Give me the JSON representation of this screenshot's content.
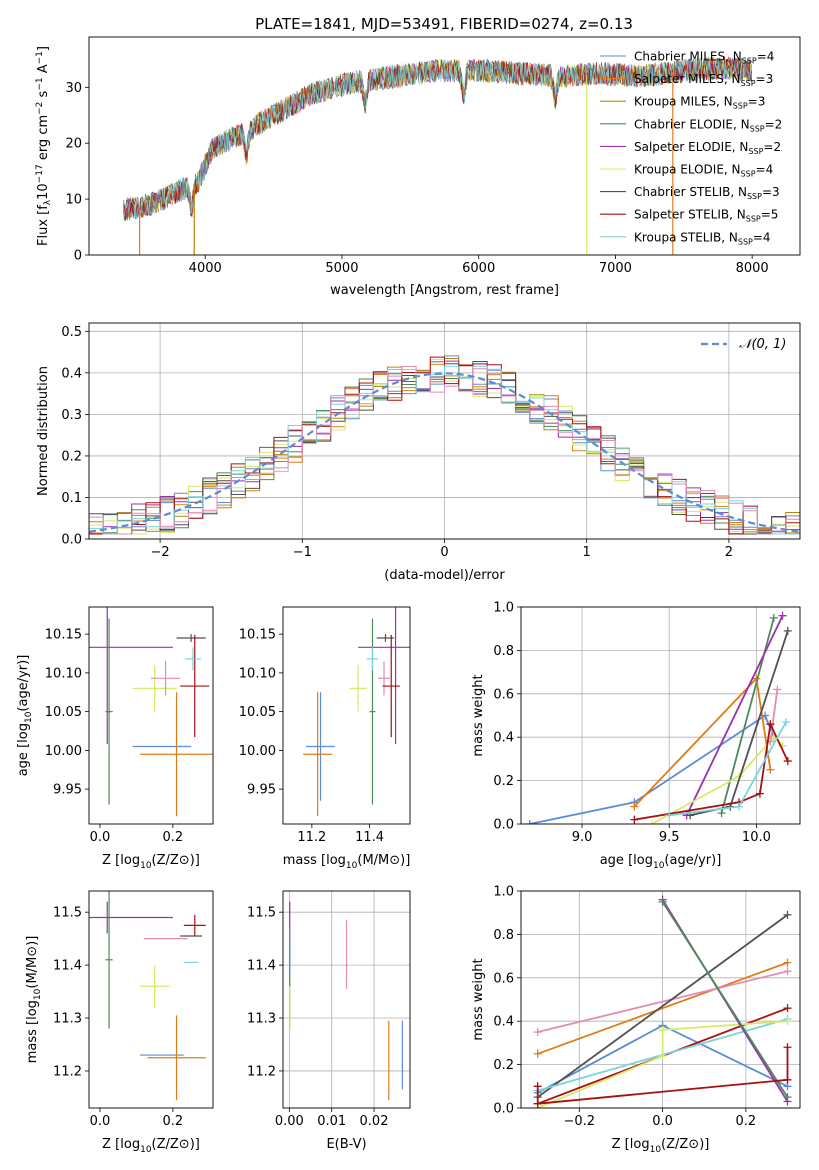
{
  "figure_title": "PLATE=1841, MJD=53491, FIBERID=0274, z=0.13",
  "colors": {
    "chabrier_miles": "#5b8bd6",
    "salpeter_miles": "#e07b1a",
    "kroupa_miles": "#b8860b",
    "chabrier_elodie": "#4d8a57",
    "salpeter_elodie": "#9b30b0",
    "kroupa_elodie": "#d8e96a",
    "chabrier_stelib": "#505050",
    "salpeter_stelib": "#a81010",
    "kroupa_stelib": "#7ad4dc",
    "pink": "#e48bb5",
    "grid": "#b0b0b0"
  },
  "chart_data": [
    {
      "type": "line",
      "title": "PLATE=1841, MJD=53491, FIBERID=0274, z=0.13",
      "xlabel": "wavelength [Angstrom, rest frame]",
      "ylabel": "Flux [f_λ 10^-17 erg cm^-2 s^-1 A^-1]",
      "xlim": [
        3150,
        8350
      ],
      "ylim": [
        0,
        39
      ],
      "xticks": [
        "4000",
        "5000",
        "6000",
        "7000",
        "8000"
      ],
      "yticks": [
        "0",
        "10",
        "20",
        "30"
      ],
      "grid": false,
      "legend": "top-right",
      "legend_entries": [
        {
          "label": "Chabrier MILES, N",
          "sub": "SSP",
          "tail": "=4"
        },
        {
          "label": "Salpeter MILES, N",
          "sub": "SSP",
          "tail": "=3"
        },
        {
          "label": "Kroupa MILES, N",
          "sub": "SSP",
          "tail": "=3"
        },
        {
          "label": "Chabrier ELODIE, N",
          "sub": "SSP",
          "tail": "=2"
        },
        {
          "label": "Salpeter ELODIE, N",
          "sub": "SSP",
          "tail": "=2"
        },
        {
          "label": "Kroupa ELODIE, N",
          "sub": "SSP",
          "tail": "=4"
        },
        {
          "label": "Chabrier STELIB, N",
          "sub": "SSP",
          "tail": "=3"
        },
        {
          "label": "Salpeter STELIB, N",
          "sub": "SSP",
          "tail": "=5"
        },
        {
          "label": "Kroupa STELIB, N",
          "sub": "SSP",
          "tail": "=4"
        }
      ],
      "continuum": {
        "x": [
          3400,
          3600,
          3850,
          3950,
          4050,
          4200,
          4300,
          4500,
          4800,
          5100,
          5400,
          5700,
          6000,
          6300,
          6600,
          6900,
          7200,
          7500,
          7800,
          8000
        ],
        "y": [
          8,
          9,
          12,
          13,
          19,
          21,
          22,
          25,
          29,
          31,
          32,
          33,
          33,
          32.5,
          32,
          32.5,
          32,
          33,
          33.5,
          33
        ]
      },
      "features": {
        "drop_x": [
          3520,
          3920,
          6790,
          7420
        ],
        "absorption_x": [
          3900,
          4300,
          5170,
          5890,
          6560
        ]
      }
    },
    {
      "type": "histogram",
      "xlabel": "(data-model)/error",
      "ylabel": "Normed distribution",
      "xlim": [
        -2.5,
        2.5
      ],
      "ylim": [
        0,
        0.52
      ],
      "xticks": [
        "−2",
        "−1",
        "0",
        "1",
        "2"
      ],
      "yticks": [
        "0.0",
        "0.1",
        "0.2",
        "0.3",
        "0.4",
        "0.5"
      ],
      "grid": true,
      "legend": "top-right",
      "legend_label": "𝒩(0, 1)",
      "bin_width": 0.1,
      "max_values": [
        0.49,
        0.5
      ]
    },
    {
      "type": "scatter",
      "xlabel": "Z [log10(Z/Z⊙)]",
      "ylabel": "age  [log10(age/yr)]",
      "xlim": [
        -0.03,
        0.31
      ],
      "ylim": [
        9.905,
        10.185
      ],
      "xticks": [
        "0.0",
        "0.2"
      ],
      "xtick_values": [
        0,
        0.2
      ],
      "yticks": [
        "9.95",
        "10.00",
        "10.05",
        "10.10",
        "10.15"
      ],
      "ytick_values": [
        9.95,
        10.0,
        10.05,
        10.1,
        10.15
      ],
      "grid": false,
      "points": [
        {
          "s": "salpeter_elodie",
          "x": 0.02,
          "y": 10.133,
          "xe": 0.18,
          "ye": 0.125
        },
        {
          "s": "chabrier_elodie",
          "x": 0.025,
          "y": 10.05,
          "xe": 0.01,
          "ye": 0.12
        },
        {
          "s": "chabrier_miles",
          "x": 0.17,
          "y": 10.005,
          "xe": 0.08,
          "ye": 0.0
        },
        {
          "s": "salpeter_miles",
          "x": 0.21,
          "y": 9.995,
          "xe": 0.1,
          "ye": 0.08
        },
        {
          "s": "kroupa_elodie",
          "x": 0.15,
          "y": 10.08,
          "xe": 0.06,
          "ye": 0.03
        },
        {
          "s": "pink",
          "x": 0.18,
          "y": 10.093,
          "xe": 0.04,
          "ye": 0.022
        },
        {
          "s": "chabrier_stelib",
          "x": 0.25,
          "y": 10.145,
          "xe": 0.04,
          "ye": 0.005
        },
        {
          "s": "salpeter_stelib",
          "x": 0.26,
          "y": 10.083,
          "xe": 0.04,
          "ye": 0.066
        },
        {
          "s": "kroupa_stelib",
          "x": 0.255,
          "y": 10.118,
          "xe": 0.022,
          "ye": 0.015
        }
      ]
    },
    {
      "type": "scatter",
      "xlabel": "mass [log10(M/M⊙)]",
      "ylabel": "",
      "xlim": [
        11.1,
        11.54
      ],
      "ylim": [
        9.905,
        10.185
      ],
      "xticks": [
        "11.2",
        "11.4"
      ],
      "xtick_values": [
        11.2,
        11.4
      ],
      "yticks": [
        "9.95",
        "10.00",
        "10.05",
        "10.10",
        "10.15"
      ],
      "ytick_values": [
        9.95,
        10.0,
        10.05,
        10.1,
        10.15
      ],
      "grid": false,
      "points": [
        {
          "s": "salpeter_elodie",
          "x": 11.49,
          "y": 10.133,
          "xe": 0.13,
          "ye": 0.125
        },
        {
          "s": "chabrier_elodie",
          "x": 11.41,
          "y": 10.05,
          "xe": 0.01,
          "ye": 0.12
        },
        {
          "s": "chabrier_miles",
          "x": 11.23,
          "y": 10.005,
          "xe": 0.05,
          "ye": 0.07
        },
        {
          "s": "salpeter_miles",
          "x": 11.22,
          "y": 9.995,
          "xe": 0.05,
          "ye": 0.08
        },
        {
          "s": "kroupa_elodie",
          "x": 11.36,
          "y": 10.08,
          "xe": 0.03,
          "ye": 0.03
        },
        {
          "s": "pink",
          "x": 11.45,
          "y": 10.093,
          "xe": 0.02,
          "ye": 0.022
        },
        {
          "s": "chabrier_stelib",
          "x": 11.455,
          "y": 10.145,
          "xe": 0.03,
          "ye": 0.005
        },
        {
          "s": "salpeter_stelib",
          "x": 11.475,
          "y": 10.083,
          "xe": 0.03,
          "ye": 0.066
        },
        {
          "s": "kroupa_stelib",
          "x": 11.41,
          "y": 10.118,
          "xe": 0.02,
          "ye": 0.015
        }
      ]
    },
    {
      "type": "line",
      "xlabel": "age  [log10(age/yr)]",
      "ylabel": "mass weight",
      "xlim": [
        8.65,
        10.25
      ],
      "ylim": [
        0,
        1.0
      ],
      "xticks": [
        "9.0",
        "9.5",
        "10.0"
      ],
      "xtick_values": [
        9.0,
        9.5,
        10.0
      ],
      "yticks": [
        "0.0",
        "0.2",
        "0.4",
        "0.6",
        "0.8",
        "1.0"
      ],
      "ytick_values": [
        0,
        0.2,
        0.4,
        0.6,
        0.8,
        1.0
      ],
      "grid": true,
      "series": [
        {
          "s": "chabrier_miles",
          "x": [
            8.7,
            9.3,
            10.05,
            10.1
          ],
          "y": [
            0.0,
            0.1,
            0.5,
            0.4
          ]
        },
        {
          "s": "salpeter_miles",
          "x": [
            9.3,
            10.0,
            10.08
          ],
          "y": [
            0.08,
            0.67,
            0.25
          ]
        },
        {
          "s": "chabrier_elodie",
          "x": [
            9.8,
            10.1
          ],
          "y": [
            0.05,
            0.95
          ]
        },
        {
          "s": "salpeter_elodie",
          "x": [
            9.6,
            10.15
          ],
          "y": [
            0.04,
            0.96
          ]
        },
        {
          "s": "kroupa_elodie",
          "x": [
            9.4,
            9.9,
            10.1,
            10.15
          ],
          "y": [
            0.0,
            0.22,
            0.4,
            0.36
          ]
        },
        {
          "s": "pink",
          "x": [
            10.08,
            10.12
          ],
          "y": [
            0.38,
            0.62
          ]
        },
        {
          "s": "chabrier_stelib",
          "x": [
            9.62,
            9.85,
            10.18
          ],
          "y": [
            0.04,
            0.08,
            0.89
          ]
        },
        {
          "s": "salpeter_stelib",
          "x": [
            9.3,
            9.9,
            10.02,
            10.08,
            10.18
          ],
          "y": [
            0.02,
            0.1,
            0.14,
            0.46,
            0.29
          ]
        },
        {
          "s": "kroupa_stelib",
          "x": [
            9.5,
            9.9,
            10.17
          ],
          "y": [
            0.04,
            0.08,
            0.47
          ]
        }
      ]
    },
    {
      "type": "scatter",
      "xlabel": "Z [log10(Z/Z⊙)]",
      "ylabel": "mass [log10(M/M⊙)]",
      "xlim": [
        -0.03,
        0.31
      ],
      "ylim": [
        11.13,
        11.54
      ],
      "xticks": [
        "0.0",
        "0.2"
      ],
      "xtick_values": [
        0,
        0.2
      ],
      "yticks": [
        "11.2",
        "11.3",
        "11.4",
        "11.5"
      ],
      "ytick_values": [
        11.2,
        11.3,
        11.4,
        11.5
      ],
      "grid": false,
      "points": [
        {
          "s": "salpeter_elodie",
          "x": 0.02,
          "y": 11.49,
          "xe": 0.18,
          "ye": 0.03
        },
        {
          "s": "chabrier_elodie",
          "x": 0.025,
          "y": 11.41,
          "xe": 0.01,
          "ye": 0.13
        },
        {
          "s": "chabrier_miles",
          "x": 0.17,
          "y": 11.23,
          "xe": 0.06,
          "ye": 0.0
        },
        {
          "s": "salpeter_miles",
          "x": 0.21,
          "y": 11.225,
          "xe": 0.08,
          "ye": 0.08
        },
        {
          "s": "kroupa_elodie",
          "x": 0.15,
          "y": 11.36,
          "xe": 0.04,
          "ye": 0.04
        },
        {
          "s": "pink",
          "x": 0.18,
          "y": 11.45,
          "xe": 0.06,
          "ye": 0.0
        },
        {
          "s": "chabrier_stelib",
          "x": 0.25,
          "y": 11.455,
          "xe": 0.03,
          "ye": 0.0
        },
        {
          "s": "salpeter_stelib",
          "x": 0.26,
          "y": 11.475,
          "xe": 0.03,
          "ye": 0.02
        },
        {
          "s": "kroupa_stelib",
          "x": 0.25,
          "y": 11.405,
          "xe": 0.02,
          "ye": 0.0
        }
      ]
    },
    {
      "type": "scatter",
      "xlabel": "E(B-V)",
      "ylabel": "",
      "xlim": [
        -0.0015,
        0.0285
      ],
      "ylim": [
        11.13,
        11.54
      ],
      "xticks": [
        "0.00",
        "0.01",
        "0.02"
      ],
      "xtick_values": [
        0,
        0.01,
        0.02
      ],
      "yticks": [
        "11.2",
        "11.3",
        "11.4",
        "11.5"
      ],
      "ytick_values": [
        11.2,
        11.3,
        11.4,
        11.5
      ],
      "grid": true,
      "points": [
        {
          "s": "salpeter_elodie",
          "x": 0.0001,
          "y": 11.47,
          "xe": 0,
          "ye": 0.05
        },
        {
          "s": "chabrier_elodie",
          "x": 0.0001,
          "y": 11.36,
          "xe": 0,
          "ye": 0.08
        },
        {
          "s": "kroupa_elodie",
          "x": 0.0001,
          "y": 11.32,
          "xe": 0,
          "ye": 0.04
        },
        {
          "s": "chabrier_miles",
          "x": 0.0001,
          "y": 11.43,
          "xe": 0,
          "ye": 0.04
        },
        {
          "s": "pink",
          "x": 0.0135,
          "y": 11.42,
          "xe": 0,
          "ye": 0.065
        },
        {
          "s": "salpeter_miles",
          "x": 0.0235,
          "y": 11.22,
          "xe": 0,
          "ye": 0.075
        },
        {
          "s": "chabrier_miles",
          "x": 0.0267,
          "y": 11.23,
          "xe": 0,
          "ye": 0.065
        }
      ]
    },
    {
      "type": "line",
      "xlabel": "Z [log10(Z/Z⊙)]",
      "ylabel": "mass weight",
      "xlim": [
        -0.34,
        0.33
      ],
      "ylim": [
        0,
        1.0
      ],
      "xticks": [
        "−0.2",
        "0.0",
        "0.2"
      ],
      "xtick_values": [
        -0.2,
        0,
        0.2
      ],
      "yticks": [
        "0.0",
        "0.2",
        "0.4",
        "0.6",
        "0.8",
        "1.0"
      ],
      "ytick_values": [
        0,
        0.2,
        0.4,
        0.6,
        0.8,
        1.0
      ],
      "grid": true,
      "series": [
        {
          "s": "chabrier_miles",
          "x": [
            -0.3,
            0.0,
            0.3
          ],
          "y": [
            0.07,
            0.38,
            0.1
          ]
        },
        {
          "s": "salpeter_miles",
          "x": [
            -0.3,
            0.3
          ],
          "y": [
            0.25,
            0.67
          ]
        },
        {
          "s": "pink",
          "x": [
            -0.3,
            0.3
          ],
          "y": [
            0.35,
            0.63
          ]
        },
        {
          "s": "chabrier_stelib",
          "x": [
            -0.3,
            0.3
          ],
          "y": [
            0.05,
            0.89
          ]
        },
        {
          "s": "salpeter_stelib",
          "x": [
            -0.3,
            0.3
          ],
          "y": [
            0.02,
            0.46
          ]
        },
        {
          "s": "kroupa_stelib",
          "x": [
            -0.3,
            0.3
          ],
          "y": [
            0.08,
            0.41
          ]
        },
        {
          "s": "kroupa_elodie",
          "x": [
            -0.3,
            0.0,
            0.0,
            0.3
          ],
          "y": [
            0.0,
            0.24,
            0.36,
            0.4
          ]
        },
        {
          "s": "salpeter_elodie",
          "x": [
            0.0,
            0.3
          ],
          "y": [
            0.96,
            0.03
          ]
        },
        {
          "s": "chabrier_elodie",
          "x": [
            0.0,
            0.3
          ],
          "y": [
            0.95,
            0.05
          ]
        },
        {
          "s": "salpeter_stelib",
          "x": [
            -0.3,
            -0.3,
            0.3,
            0.3
          ],
          "y": [
            0.1,
            0.02,
            0.13,
            0.28
          ]
        }
      ]
    }
  ]
}
